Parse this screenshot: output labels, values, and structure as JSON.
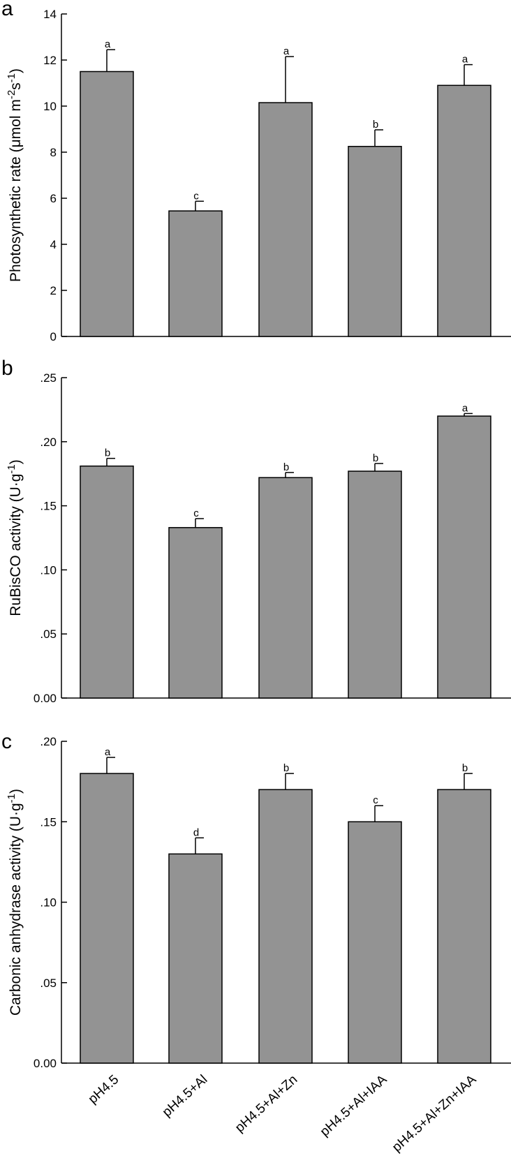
{
  "colors": {
    "bar": "#939393",
    "axis": "#000000"
  },
  "chart_data": [
    {
      "type": "bar",
      "panel": "a",
      "title": "",
      "xlabel": "",
      "ylabel": "Photosynthetic rate (μmol m-2s-1)",
      "ylabel_parts": {
        "pre": "Photosynthetic rate (μmol m",
        "sup1": "-2",
        "mid": "s",
        "sup2": "-1",
        "post": ")"
      },
      "categories": [
        "pH4.5",
        "pH4.5+Al",
        "pH4.5+Al+Zn",
        "pH4.5+Al+IAA",
        "pH4.5+Al+Zn+IAA"
      ],
      "values": [
        11.5,
        5.45,
        10.15,
        8.25,
        10.9
      ],
      "errors": [
        0.95,
        0.42,
        2.0,
        0.72,
        0.9
      ],
      "significance": [
        "a",
        "c",
        "a",
        "b",
        "a"
      ],
      "ylim": [
        0,
        14
      ],
      "yticks": [
        0,
        2,
        4,
        6,
        8,
        10,
        12,
        14
      ],
      "yticklabels": [
        "0",
        "2",
        "4",
        "6",
        "8",
        "10",
        "12",
        "14"
      ]
    },
    {
      "type": "bar",
      "panel": "b",
      "title": "",
      "xlabel": "",
      "ylabel": "RuBisCO activity (U·g-1)",
      "ylabel_parts": {
        "pre": "RuBisCO activity (U·g",
        "sup1": "-1",
        "mid": "",
        "sup2": "",
        "post": ")"
      },
      "categories": [
        "pH4.5",
        "pH4.5+Al",
        "pH4.5+Al+Zn",
        "pH4.5+Al+IAA",
        "pH4.5+Al+Zn+IAA"
      ],
      "values": [
        0.181,
        0.133,
        0.172,
        0.177,
        0.22
      ],
      "errors": [
        0.006,
        0.007,
        0.004,
        0.006,
        0.002
      ],
      "significance": [
        "b",
        "c",
        "b",
        "b",
        "a"
      ],
      "ylim": [
        0,
        0.25
      ],
      "yticks": [
        0,
        0.05,
        0.1,
        0.15,
        0.2,
        0.25
      ],
      "yticklabels": [
        "0.00",
        ".05",
        ".10",
        ".15",
        ".20",
        ".25"
      ]
    },
    {
      "type": "bar",
      "panel": "c",
      "title": "",
      "xlabel": "",
      "ylabel": "Carbonic anhydrase activity (U·g-1)",
      "ylabel_parts": {
        "pre": "Carbonic anhydrase activity (U·g",
        "sup1": "-1",
        "mid": "",
        "sup2": "",
        "post": ")"
      },
      "categories": [
        "pH4.5",
        "pH4.5+Al",
        "pH4.5+Al+Zn",
        "pH4.5+Al+IAA",
        "pH4.5+Al+Zn+IAA"
      ],
      "values": [
        0.18,
        0.13,
        0.17,
        0.15,
        0.17
      ],
      "errors": [
        0.01,
        0.01,
        0.01,
        0.01,
        0.01
      ],
      "significance": [
        "a",
        "d",
        "b",
        "c",
        "b"
      ],
      "ylim": [
        0,
        0.2
      ],
      "yticks": [
        0,
        0.05,
        0.1,
        0.15,
        0.2
      ],
      "yticklabels": [
        "0.00",
        ".05",
        ".10",
        ".15",
        ".20"
      ]
    }
  ]
}
